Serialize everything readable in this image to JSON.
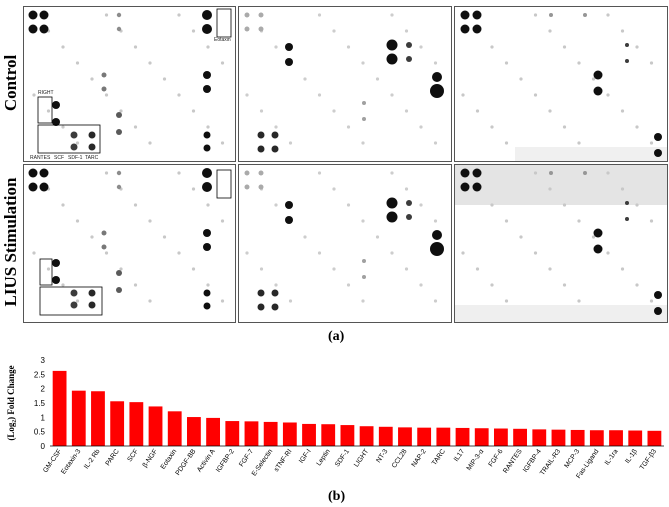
{
  "blots": {
    "row_labels": [
      "Control",
      "LIUS Stimulation"
    ],
    "panel_annotations": {
      "eotaxin": "Eotaxin",
      "right": "RIGHT",
      "bottom_labels": [
        "RANTES",
        "SCF",
        "SDF-1",
        "TARC"
      ]
    }
  },
  "captions": {
    "a": "(a)",
    "b": "(b)"
  },
  "chart_data": {
    "type": "bar",
    "ylabel": "(Log₂) Fold Change",
    "xlabel": "",
    "ylim": [
      0,
      3
    ],
    "yticks": [
      "0",
      "0.5",
      "1",
      "1.5",
      "2",
      "2.5",
      "3"
    ],
    "grid": false,
    "bar_color": "#ff0000",
    "categories": [
      "GM-CSF",
      "Eotaxin-3",
      "IL-2 Rb",
      "PARC",
      "SCF",
      "β-NGF",
      "Eotaxin",
      "PDGF-BB",
      "Activin A",
      "IGFBP-2",
      "FGF-7",
      "E-Selectin",
      "sTNF-RI",
      "IGF-I",
      "Leptin",
      "SDF-1",
      "LIGHT",
      "NT-3",
      "CCL28",
      "NAP-2",
      "TARC",
      "IL17",
      "MIP-3-α",
      "FGF-6",
      "RANTES",
      "IGFBP-4",
      "TRAIL-R3",
      "MCP-3",
      "Fas-Ligand",
      "IL-1ra",
      "IL-1β",
      "TGF-β3"
    ],
    "values": [
      2.62,
      1.93,
      1.91,
      1.56,
      1.53,
      1.38,
      1.21,
      1.01,
      0.98,
      0.87,
      0.86,
      0.84,
      0.82,
      0.77,
      0.76,
      0.73,
      0.69,
      0.67,
      0.65,
      0.64,
      0.64,
      0.63,
      0.62,
      0.61,
      0.6,
      0.58,
      0.57,
      0.56,
      0.55,
      0.55,
      0.54,
      0.53
    ]
  }
}
